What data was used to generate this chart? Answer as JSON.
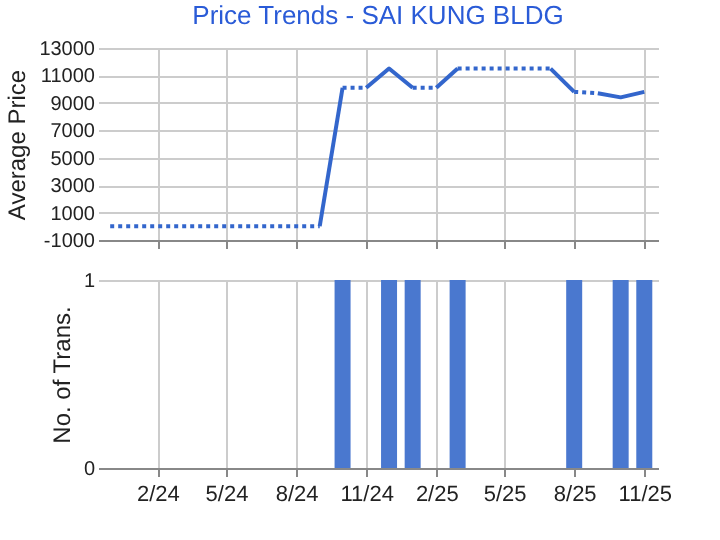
{
  "chart_data": [
    {
      "type": "line",
      "title": "Price Trends - SAI KUNG BLDG",
      "ylabel": "Average Price",
      "xlim": [
        "2023-11-15",
        "2025-11-19"
      ],
      "ylim": [
        -1000,
        13000
      ],
      "yticks": [
        -1000,
        1000,
        3000,
        5000,
        7000,
        9000,
        11000,
        13000
      ],
      "grid": true,
      "tick_labels": "y",
      "marker": "none",
      "series": [
        {
          "color": "#3366cc",
          "line_style": "dotted",
          "x": [
            "2023-12",
            "2024-01",
            "2024-02",
            "2024-03",
            "2024-04",
            "2024-05",
            "2024-06",
            "2024-07",
            "2024-08",
            "2024-09"
          ],
          "values": [
            0,
            0,
            0,
            0,
            0,
            0,
            0,
            0,
            0,
            0
          ]
        },
        {
          "color": "#3366cc",
          "line_style": "solid",
          "x": [
            "2024-09",
            "2024-10"
          ],
          "values": [
            0,
            10100
          ]
        },
        {
          "color": "#3366cc",
          "line_style": "dotted",
          "x": [
            "2024-10",
            "2024-11"
          ],
          "values": [
            10100,
            10100
          ]
        },
        {
          "color": "#3366cc",
          "line_style": "solid",
          "x": [
            "2024-11",
            "2024-12",
            "2025-01"
          ],
          "values": [
            10100,
            11500,
            10100
          ]
        },
        {
          "color": "#3366cc",
          "line_style": "dotted",
          "x": [
            "2025-01",
            "2025-02"
          ],
          "values": [
            10100,
            10100
          ]
        },
        {
          "color": "#3366cc",
          "line_style": "solid",
          "x": [
            "2025-02",
            "2025-03"
          ],
          "values": [
            10100,
            11500
          ]
        },
        {
          "color": "#3366cc",
          "line_style": "dotted",
          "x": [
            "2025-03",
            "2025-04",
            "2025-05",
            "2025-06",
            "2025-07"
          ],
          "values": [
            11500,
            11500,
            11500,
            11500,
            11500
          ]
        },
        {
          "color": "#3366cc",
          "line_style": "solid",
          "x": [
            "2025-07",
            "2025-08"
          ],
          "values": [
            11500,
            9800
          ]
        },
        {
          "color": "#3366cc",
          "line_style": "dotted",
          "x": [
            "2025-08",
            "2025-09"
          ],
          "values": [
            9800,
            9700
          ]
        },
        {
          "color": "#3366cc",
          "line_style": "solid",
          "x": [
            "2025-09",
            "2025-10",
            "2025-11"
          ],
          "values": [
            9700,
            9400,
            9800
          ]
        }
      ]
    },
    {
      "type": "bar",
      "ylabel": "No. of Trans.",
      "xlim": [
        "2023-11-15",
        "2025-11-19"
      ],
      "xticks": [
        {
          "value": "2024-02",
          "label": "2/24"
        },
        {
          "value": "2024-05",
          "label": "5/24"
        },
        {
          "value": "2024-08",
          "label": "8/24"
        },
        {
          "value": "2024-11",
          "label": "11/24"
        },
        {
          "value": "2025-02",
          "label": "2/25"
        },
        {
          "value": "2025-05",
          "label": "5/25"
        },
        {
          "value": "2025-08",
          "label": "8/25"
        },
        {
          "value": "2025-11",
          "label": "11/25"
        }
      ],
      "ylim": [
        0,
        1
      ],
      "yticks": [
        0,
        1
      ],
      "grid": true,
      "x": [
        "2024-10",
        "2024-12",
        "2025-01",
        "2025-03",
        "2025-08",
        "2025-10",
        "2025-11"
      ],
      "values": [
        1,
        1,
        1,
        1,
        1,
        1,
        1
      ],
      "color": "#4a78cf"
    }
  ]
}
